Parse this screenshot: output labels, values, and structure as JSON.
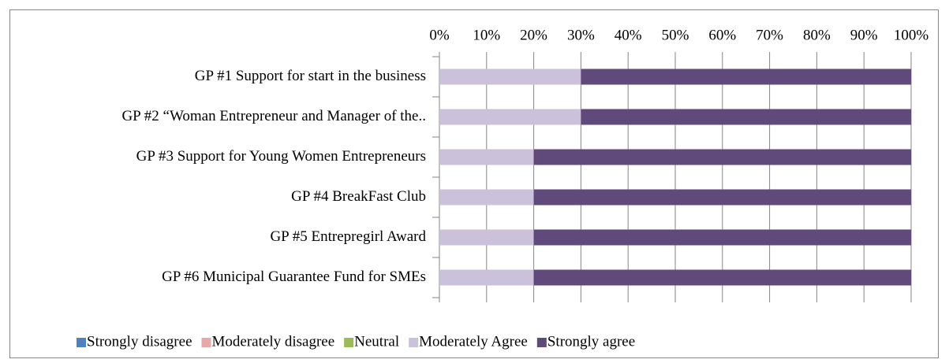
{
  "chart_data": {
    "type": "bar",
    "orientation": "horizontal",
    "stacked": true,
    "categories": [
      "GP #1 Support for start in the business",
      "GP #2  “Woman Entrepreneur and Manager of the..",
      "GP #3  Support for Young Women Entrepreneurs",
      "GP #4  BreakFast Club",
      "GP #5 Entrepregirl Award",
      "GP #6 Municipal Guarantee Fund for SMEs"
    ],
    "series": [
      {
        "name": "Strongly disagree",
        "color": "#4f81bd",
        "values": [
          0,
          0,
          0,
          0,
          0,
          0
        ]
      },
      {
        "name": "Moderately disagree",
        "color": "#e6a9a7",
        "values": [
          0,
          0,
          0,
          0,
          0,
          0
        ]
      },
      {
        "name": "Neutral",
        "color": "#9bbb59",
        "values": [
          0,
          0,
          0,
          0,
          0,
          0
        ]
      },
      {
        "name": "Moderately Agree",
        "color": "#ccc1da",
        "values": [
          30,
          30,
          20,
          20,
          20,
          20
        ]
      },
      {
        "name": "Strongly agree",
        "color": "#604a7b",
        "values": [
          70,
          70,
          80,
          80,
          80,
          80
        ]
      }
    ],
    "xlim": [
      0,
      100
    ],
    "xticks": [
      {
        "value": 0,
        "label": "0%"
      },
      {
        "value": 10,
        "label": "10%"
      },
      {
        "value": 20,
        "label": "20%"
      },
      {
        "value": 30,
        "label": "30%"
      },
      {
        "value": 40,
        "label": "40%"
      },
      {
        "value": 50,
        "label": "50%"
      },
      {
        "value": 60,
        "label": "60%"
      },
      {
        "value": 70,
        "label": "70%"
      },
      {
        "value": 80,
        "label": "80%"
      },
      {
        "value": 90,
        "label": "90%"
      },
      {
        "value": 100,
        "label": "100%"
      }
    ],
    "grid": true,
    "legend": "bottom"
  }
}
